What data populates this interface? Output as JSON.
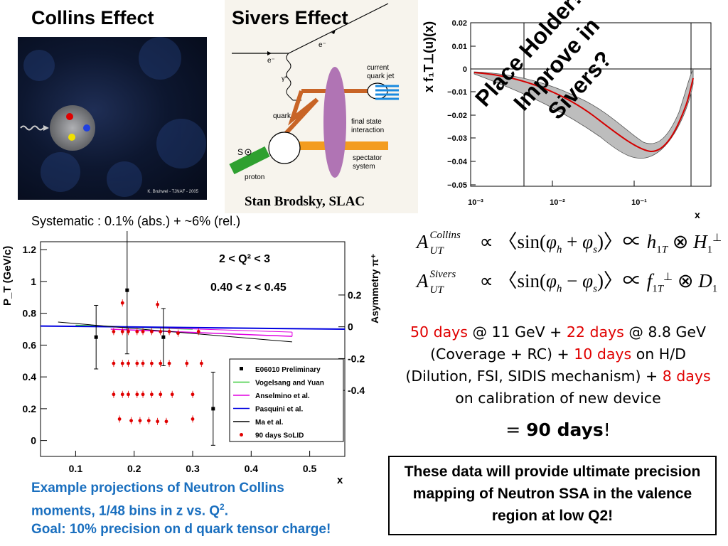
{
  "collins": {
    "title": "Collins Effect",
    "credit": "K. Bruhwel - TJNAF - 2005"
  },
  "sivers": {
    "title": "Sivers Effect",
    "labels": {
      "e_in": "e⁻",
      "e_out": "e⁻",
      "gamma": "γ*",
      "quark": "quark",
      "current_jet_1": "current",
      "current_jet_2": "quark jet",
      "fsi_1": "final state",
      "fsi_2": "interaction",
      "spectator_1": "spectator",
      "spectator_2": "system",
      "spin": "S",
      "proton": "proton"
    },
    "credit": "Stan Brodsky, SLAC"
  },
  "sivers_plot": {
    "ylabel": "x f₁T⊥(u)(x)",
    "xlabel": "x",
    "yticks": [
      "0.02",
      "0.01",
      "0",
      "−0.01",
      "−0.02",
      "−0.03",
      "−0.04",
      "−0.05"
    ],
    "xticks": [
      "10⁻³",
      "10⁻²",
      "10⁻¹"
    ],
    "overlay": [
      "Place Holder!!!",
      "Improve in",
      "Sivers?"
    ],
    "colors": {
      "band": "#bdbdbd",
      "curve": "#d40000"
    }
  },
  "systematic": "Systematic : 0.1% (abs.) + ~6% (rel.)",
  "chart_data": {
    "type": "scatter",
    "ylabel": "P_T (GeV/c)",
    "y2label": "Asymmetry π⁺",
    "xlabel": "x",
    "xlim": [
      0.04,
      0.56
    ],
    "ylim": [
      -0.1,
      1.25
    ],
    "xticks": [
      "0.1",
      "0.2",
      "0.3",
      "0.4",
      "0.5"
    ],
    "yticks": [
      "0",
      "0.2",
      "0.4",
      "0.6",
      "0.8",
      "1",
      "1.2"
    ],
    "y2ticks": [
      "0.2",
      "0",
      "-0.2",
      "-0.4"
    ],
    "annotation_1": "2 < Q² < 3",
    "annotation_2": "0.40 < z < 0.45",
    "legend": [
      {
        "name": "E06010 Preliminary",
        "color": "#000000",
        "marker": "square"
      },
      {
        "name": "Vogelsang and Yuan",
        "color": "#3ccc3c",
        "marker": "line"
      },
      {
        "name": "Anselmino et al.",
        "color": "#e000e0",
        "marker": "line"
      },
      {
        "name": "Pasquini et al.",
        "color": "#0000e0",
        "marker": "line"
      },
      {
        "name": "Ma et al.",
        "color": "#000000",
        "marker": "line"
      },
      {
        "name": "90 days SoLID",
        "color": "#e00000",
        "marker": "dot"
      }
    ],
    "series": [
      {
        "name": "E06010 Preliminary",
        "x": [
          0.135,
          0.188,
          0.25,
          0.335
        ],
        "y": [
          0.65,
          0.945,
          0.65,
          0.2
        ],
        "err": [
          0.2,
          0.4,
          0.18,
          0.23
        ]
      },
      {
        "name": "90 days SoLID",
        "x": [
          0.165,
          0.18,
          0.19,
          0.205,
          0.215,
          0.23,
          0.245,
          0.26,
          0.275,
          0.31,
          0.165,
          0.18,
          0.19,
          0.205,
          0.215,
          0.23,
          0.245,
          0.26,
          0.29,
          0.315,
          0.165,
          0.18,
          0.19,
          0.205,
          0.215,
          0.23,
          0.245,
          0.265,
          0.3,
          0.175,
          0.195,
          0.21,
          0.225,
          0.24,
          0.255,
          0.3,
          0.18,
          0.24
        ],
        "y": [
          0.685,
          0.685,
          0.685,
          0.685,
          0.685,
          0.685,
          0.685,
          0.685,
          0.675,
          0.685,
          0.485,
          0.485,
          0.485,
          0.485,
          0.485,
          0.485,
          0.485,
          0.485,
          0.485,
          0.485,
          0.29,
          0.29,
          0.29,
          0.29,
          0.29,
          0.29,
          0.29,
          0.29,
          0.29,
          0.135,
          0.125,
          0.125,
          0.125,
          0.12,
          0.12,
          0.135,
          0.865,
          0.855
        ]
      },
      {
        "name": "Vogelsang and Yuan",
        "x": [
          0.1,
          0.3
        ],
        "y": [
          0.725,
          0.7
        ]
      },
      {
        "name": "Anselmino et al.",
        "x": [
          0.16,
          0.47
        ],
        "y": [
          0.7,
          0.655
        ]
      },
      {
        "name": "Pasquini et al.",
        "x": [
          0.04,
          0.56
        ],
        "y": [
          0.72,
          0.7
        ]
      },
      {
        "name": "Ma et al.",
        "x": [
          0.07,
          0.47
        ],
        "y": [
          0.745,
          0.62
        ]
      }
    ]
  },
  "equations": {
    "collins_sup": "Collins",
    "sivers_sup": "Sivers",
    "ut": "UT"
  },
  "plan": {
    "days_11": "50 days",
    "text_1": " @ 11 GeV + ",
    "days_88": "22 days",
    "text_2": " @ 8.8 GeV (Coverage + RC) + ",
    "days_hd": "10 days",
    "text_3": " on H/D (Dilution, FSI, SIDIS mechanism) + ",
    "days_cal": "8 days",
    "text_4": " on calibration of new device",
    "total_prefix": "= ",
    "total": "90 days",
    "total_suffix": "!"
  },
  "conclusion": "These data will provide ultimate precision mapping of Neutron SSA in the valence region at low Q2!",
  "caption": {
    "line_1": "Example projections of Neutron Collins moments, 1/48 bins in z vs. Q",
    "sup": "2",
    "line_1_end": ".",
    "line_2": "Goal: 10% precision on d quark tensor charge!"
  }
}
